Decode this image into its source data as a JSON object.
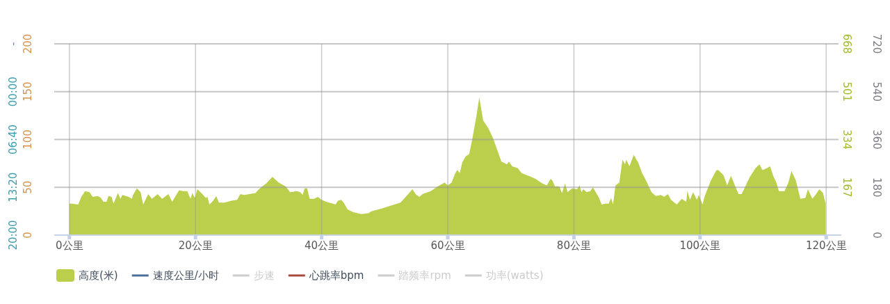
{
  "chart_data": {
    "type": "area",
    "xlim": [
      -2.4,
      122.4
    ],
    "xticks": [
      {
        "value": 0,
        "label": "0公里"
      },
      {
        "value": 20,
        "label": "20公里"
      },
      {
        "value": 40,
        "label": "40公里"
      },
      {
        "value": 60,
        "label": "60公里"
      },
      {
        "value": 80,
        "label": "80公里"
      },
      {
        "value": 100,
        "label": "100公里"
      },
      {
        "value": 120,
        "label": "120公里"
      }
    ],
    "ylim": [
      0,
      200
    ],
    "yticks": [
      0,
      50,
      100,
      150,
      200
    ],
    "y2lim": [
      0,
      668
    ],
    "y2ticks": [
      167,
      334,
      501,
      668
    ],
    "y3lim": [
      0,
      720
    ],
    "y3ticks": [
      0,
      180,
      360,
      540,
      720
    ],
    "annotations": [
      "20:00",
      "13:20",
      "06:40",
      "00:00",
      "-"
    ],
    "grid": true,
    "legend": "bottom left",
    "series": [
      {
        "name": "高度(米)",
        "color": "#bccf4c",
        "x": [
          0,
          0.4,
          1.4,
          1.9,
          2.5,
          3.2,
          3.7,
          4.5,
          5.0,
          5.4,
          5.9,
          6.2,
          6.7,
          7.0,
          7.7,
          8.1,
          8.4,
          9.4,
          9.9,
          10.1,
          10.7,
          11.3,
          11.7,
          12.5,
          13.1,
          14.0,
          14.7,
          15.7,
          16.3,
          17.4,
          18.0,
          18.7,
          19.2,
          19.5,
          19.9,
          20.3,
          21.1,
          21.6,
          21.9,
          22.2,
          22.8,
          23.3,
          23.7,
          24.6,
          25.7,
          26.6,
          27.1,
          27.7,
          29.5,
          30.2,
          31.2,
          32.2,
          33.2,
          34.3,
          35.0,
          36.1,
          36.6,
          37.0,
          37.3,
          37.7,
          38.1,
          38.8,
          39.4,
          40.0,
          40.7,
          41.8,
          42.2,
          42.6,
          43.1,
          43.5,
          44.1,
          45.0,
          46.3,
          47.4,
          47.9,
          49.6,
          51.0,
          52.5,
          53.6,
          54.4,
          54.9,
          55.5,
          56.0,
          57.3,
          58.4,
          59.5,
          60.0,
          60.6,
          61.2,
          61.5,
          61.9,
          62.3,
          62.8,
          63.4,
          63.9,
          64.5,
          65.0,
          65.6,
          66.5,
          67.2,
          68.5,
          69.4,
          69.7,
          70.2,
          71.1,
          71.7,
          72.8,
          73.9,
          75.0,
          75.7,
          76.3,
          76.6,
          77.0,
          77.7,
          78.1,
          78.6,
          79.0,
          79.7,
          80.5,
          80.9,
          81.2,
          81.5,
          82.0,
          82.6,
          83.0,
          83.9,
          84.4,
          85.0,
          85.5,
          85.9,
          86.2,
          86.6,
          87.2,
          87.7,
          88.1,
          88.3,
          88.8,
          89.5,
          89.9,
          90.2,
          90.8,
          91.6,
          92.3,
          93.0,
          93.8,
          94.3,
          94.9,
          95.4,
          96.3,
          97.1,
          97.8,
          98.0,
          98.4,
          98.9,
          99.5,
          99.8,
          100.4,
          100.7,
          101.7,
          102.6,
          102.9,
          103.7,
          104.3,
          104.9,
          106.1,
          106.6,
          107.9,
          108.8,
          109.4,
          109.9,
          110.6,
          111.1,
          111.6,
          112.1,
          112.5,
          113.4,
          114.0,
          114.5,
          115.2,
          115.9,
          116.7,
          117.1,
          117.8,
          118.4,
          118.9,
          119.5,
          119.9
        ],
        "values": [
          33,
          33,
          32,
          40,
          46,
          45,
          40,
          41,
          39,
          35,
          35,
          41,
          40,
          33,
          44,
          38,
          42,
          40,
          38,
          42,
          49,
          45,
          32,
          43,
          38,
          43,
          38,
          43,
          35,
          47,
          46,
          46,
          38,
          44,
          39,
          48,
          43,
          39,
          40,
          32,
          36,
          41,
          34,
          34,
          36,
          37,
          43,
          42,
          44,
          49,
          54,
          61,
          55,
          51,
          45,
          46,
          45,
          42,
          49,
          49,
          38,
          38,
          40,
          37,
          35,
          33,
          32,
          36,
          37,
          34,
          27,
          24,
          22,
          23,
          25,
          28,
          31,
          34,
          42,
          48,
          43,
          40,
          43,
          46,
          51,
          55,
          52,
          55,
          65,
          68,
          65,
          76,
          82,
          85,
          101,
          123,
          144,
          120,
          111,
          101,
          77,
          74,
          77,
          72,
          70,
          65,
          62,
          59,
          54,
          52,
          59,
          57,
          51,
          51,
          44,
          54,
          45,
          49,
          48,
          52,
          45,
          48,
          45,
          46,
          50,
          40,
          32,
          33,
          33,
          39,
          32,
          52,
          55,
          79,
          74,
          79,
          72,
          84,
          79,
          76,
          65,
          55,
          45,
          41,
          42,
          40,
          43,
          37,
          32,
          38,
          35,
          46,
          37,
          45,
          37,
          42,
          32,
          40,
          57,
          68,
          68,
          63,
          52,
          62,
          43,
          43,
          61,
          70,
          74,
          68,
          70,
          72,
          62,
          55,
          46,
          46,
          55,
          67,
          57,
          38,
          39,
          48,
          38,
          43,
          48,
          44,
          33
        ]
      },
      {
        "name": "速度公里/小时",
        "type": "line",
        "color": "#4a6f98"
      },
      {
        "name": "步速",
        "type": "line",
        "color": "#cccccc"
      },
      {
        "name": "心跳率bpm",
        "type": "line",
        "color": "#a64a3c"
      },
      {
        "name": "踏频率rpm",
        "type": "line",
        "color": "#cccccc"
      },
      {
        "name": "功率(watts)",
        "type": "line",
        "color": "#cccccc"
      }
    ]
  }
}
